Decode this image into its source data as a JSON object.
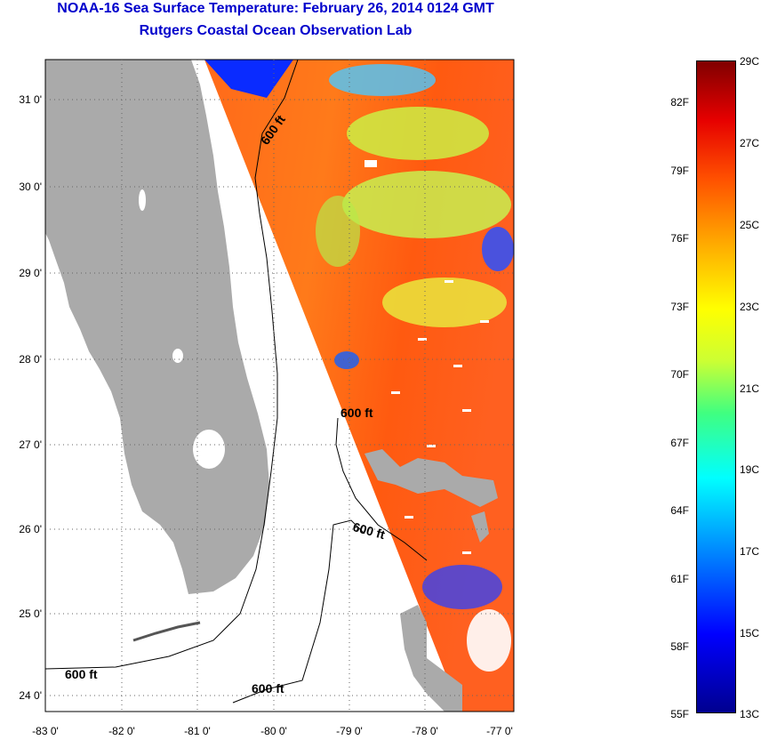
{
  "title_line1": "NOAA-16 Sea Surface Temperature:  February 26, 2014 0124 GMT",
  "title_line2": "Rutgers Coastal Ocean Observation Lab",
  "lon_ticks": [
    "-83 0'",
    "-82 0'",
    "-81 0'",
    "-80 0'",
    "-79 0'",
    "-78 0'",
    "-77 0'"
  ],
  "lat_ticks": [
    "31 0'",
    "30 0'",
    "29 0'",
    "28 0'",
    "27 0'",
    "26 0'",
    "25 0'",
    "24 0'"
  ],
  "contour_labels": [
    "600 ft",
    "600 ft",
    "600 ft",
    "600 ft",
    "600 ft"
  ],
  "colorbar": {
    "fahrenheit": [
      "82F",
      "79F",
      "76F",
      "73F",
      "70F",
      "67F",
      "64F",
      "61F",
      "58F",
      "55F"
    ],
    "celsius": [
      "29C",
      "27C",
      "25C",
      "23C",
      "21C",
      "19C",
      "17C",
      "15C",
      "13C"
    ],
    "range_c": [
      13,
      29
    ],
    "colors": [
      "#00008f",
      "#0000ff",
      "#0080ff",
      "#00ffff",
      "#40ff80",
      "#ccff33",
      "#ffff00",
      "#ffaa00",
      "#ff5000",
      "#e60000",
      "#800000"
    ]
  },
  "colors": {
    "land": "#aaaaaa",
    "title": "#0000cc"
  }
}
